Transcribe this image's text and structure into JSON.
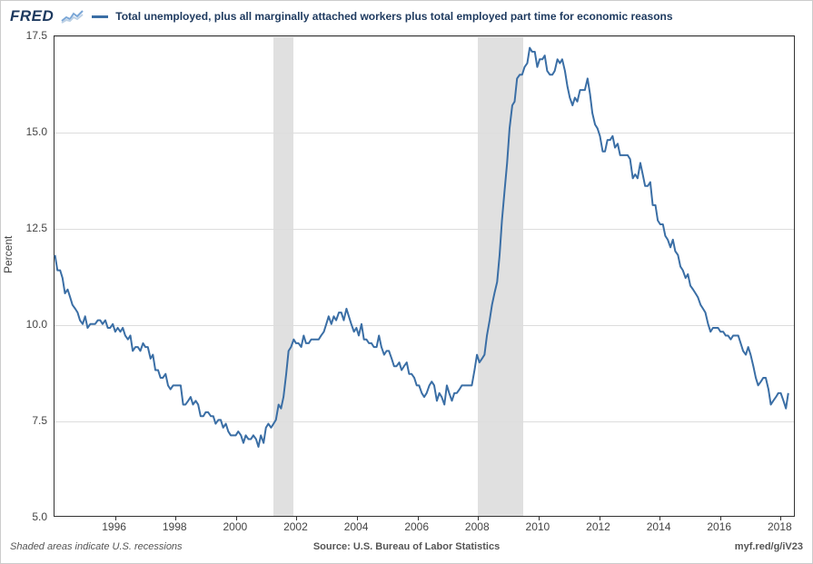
{
  "header": {
    "logo_text": "FRED",
    "legend_label": "Total unemployed, plus all marginally attached workers plus total employed part time for economic reasons"
  },
  "chart": {
    "type": "line",
    "ylabel": "Percent",
    "line_color": "#3a6ea5",
    "line_width": 2,
    "background_color": "#ffffff",
    "grid_color": "#dddddd",
    "axis_color": "#333333",
    "recession_color": "#e0e0e0",
    "label_fontsize": 12,
    "label_color": "#444444",
    "xlim": [
      1994.0,
      2018.5
    ],
    "ylim": [
      5.0,
      17.5
    ],
    "yticks": [
      5.0,
      7.5,
      10.0,
      12.5,
      15.0,
      17.5
    ],
    "ytick_labels": [
      "5.0",
      "7.5",
      "10.0",
      "12.5",
      "15.0",
      "17.5"
    ],
    "xticks": [
      1996,
      1998,
      2000,
      2002,
      2004,
      2006,
      2008,
      2010,
      2012,
      2014,
      2016,
      2018
    ],
    "xtick_labels": [
      "1996",
      "1998",
      "2000",
      "2002",
      "2004",
      "2006",
      "2008",
      "2010",
      "2012",
      "2014",
      "2016",
      "2018"
    ],
    "recessions": [
      {
        "start": 2001.25,
        "end": 2001.9
      },
      {
        "start": 2008.0,
        "end": 2009.5
      }
    ],
    "series": [
      {
        "x": 1994.0,
        "y": 11.8
      },
      {
        "x": 1994.08,
        "y": 11.4
      },
      {
        "x": 1994.17,
        "y": 11.4
      },
      {
        "x": 1994.25,
        "y": 11.2
      },
      {
        "x": 1994.33,
        "y": 10.8
      },
      {
        "x": 1994.42,
        "y": 10.9
      },
      {
        "x": 1994.5,
        "y": 10.7
      },
      {
        "x": 1994.58,
        "y": 10.5
      },
      {
        "x": 1994.67,
        "y": 10.4
      },
      {
        "x": 1994.75,
        "y": 10.3
      },
      {
        "x": 1994.83,
        "y": 10.1
      },
      {
        "x": 1994.92,
        "y": 10.0
      },
      {
        "x": 1995.0,
        "y": 10.2
      },
      {
        "x": 1995.08,
        "y": 9.9
      },
      {
        "x": 1995.17,
        "y": 10.0
      },
      {
        "x": 1995.25,
        "y": 10.0
      },
      {
        "x": 1995.33,
        "y": 10.0
      },
      {
        "x": 1995.42,
        "y": 10.1
      },
      {
        "x": 1995.5,
        "y": 10.1
      },
      {
        "x": 1995.58,
        "y": 10.0
      },
      {
        "x": 1995.67,
        "y": 10.1
      },
      {
        "x": 1995.75,
        "y": 9.9
      },
      {
        "x": 1995.83,
        "y": 9.9
      },
      {
        "x": 1995.92,
        "y": 10.0
      },
      {
        "x": 1996.0,
        "y": 9.8
      },
      {
        "x": 1996.08,
        "y": 9.9
      },
      {
        "x": 1996.17,
        "y": 9.8
      },
      {
        "x": 1996.25,
        "y": 9.9
      },
      {
        "x": 1996.33,
        "y": 9.7
      },
      {
        "x": 1996.42,
        "y": 9.6
      },
      {
        "x": 1996.5,
        "y": 9.7
      },
      {
        "x": 1996.58,
        "y": 9.3
      },
      {
        "x": 1996.67,
        "y": 9.4
      },
      {
        "x": 1996.75,
        "y": 9.4
      },
      {
        "x": 1996.83,
        "y": 9.3
      },
      {
        "x": 1996.92,
        "y": 9.5
      },
      {
        "x": 1997.0,
        "y": 9.4
      },
      {
        "x": 1997.08,
        "y": 9.4
      },
      {
        "x": 1997.17,
        "y": 9.1
      },
      {
        "x": 1997.25,
        "y": 9.2
      },
      {
        "x": 1997.33,
        "y": 8.8
      },
      {
        "x": 1997.42,
        "y": 8.8
      },
      {
        "x": 1997.5,
        "y": 8.6
      },
      {
        "x": 1997.58,
        "y": 8.6
      },
      {
        "x": 1997.67,
        "y": 8.7
      },
      {
        "x": 1997.75,
        "y": 8.4
      },
      {
        "x": 1997.83,
        "y": 8.3
      },
      {
        "x": 1997.92,
        "y": 8.4
      },
      {
        "x": 1998.0,
        "y": 8.4
      },
      {
        "x": 1998.08,
        "y": 8.4
      },
      {
        "x": 1998.17,
        "y": 8.4
      },
      {
        "x": 1998.25,
        "y": 7.9
      },
      {
        "x": 1998.33,
        "y": 7.9
      },
      {
        "x": 1998.42,
        "y": 8.0
      },
      {
        "x": 1998.5,
        "y": 8.1
      },
      {
        "x": 1998.58,
        "y": 7.9
      },
      {
        "x": 1998.67,
        "y": 8.0
      },
      {
        "x": 1998.75,
        "y": 7.9
      },
      {
        "x": 1998.83,
        "y": 7.6
      },
      {
        "x": 1998.92,
        "y": 7.6
      },
      {
        "x": 1999.0,
        "y": 7.7
      },
      {
        "x": 1999.08,
        "y": 7.7
      },
      {
        "x": 1999.17,
        "y": 7.6
      },
      {
        "x": 1999.25,
        "y": 7.6
      },
      {
        "x": 1999.33,
        "y": 7.4
      },
      {
        "x": 1999.42,
        "y": 7.5
      },
      {
        "x": 1999.5,
        "y": 7.5
      },
      {
        "x": 1999.58,
        "y": 7.3
      },
      {
        "x": 1999.67,
        "y": 7.4
      },
      {
        "x": 1999.75,
        "y": 7.2
      },
      {
        "x": 1999.83,
        "y": 7.1
      },
      {
        "x": 1999.92,
        "y": 7.1
      },
      {
        "x": 2000.0,
        "y": 7.1
      },
      {
        "x": 2000.08,
        "y": 7.2
      },
      {
        "x": 2000.17,
        "y": 7.1
      },
      {
        "x": 2000.25,
        "y": 6.9
      },
      {
        "x": 2000.33,
        "y": 7.1
      },
      {
        "x": 2000.42,
        "y": 7.0
      },
      {
        "x": 2000.5,
        "y": 7.0
      },
      {
        "x": 2000.58,
        "y": 7.1
      },
      {
        "x": 2000.67,
        "y": 7.0
      },
      {
        "x": 2000.75,
        "y": 6.8
      },
      {
        "x": 2000.83,
        "y": 7.1
      },
      {
        "x": 2000.92,
        "y": 6.9
      },
      {
        "x": 2001.0,
        "y": 7.3
      },
      {
        "x": 2001.08,
        "y": 7.4
      },
      {
        "x": 2001.17,
        "y": 7.3
      },
      {
        "x": 2001.25,
        "y": 7.4
      },
      {
        "x": 2001.33,
        "y": 7.5
      },
      {
        "x": 2001.42,
        "y": 7.9
      },
      {
        "x": 2001.5,
        "y": 7.8
      },
      {
        "x": 2001.58,
        "y": 8.1
      },
      {
        "x": 2001.67,
        "y": 8.7
      },
      {
        "x": 2001.75,
        "y": 9.3
      },
      {
        "x": 2001.83,
        "y": 9.4
      },
      {
        "x": 2001.92,
        "y": 9.6
      },
      {
        "x": 2002.0,
        "y": 9.5
      },
      {
        "x": 2002.08,
        "y": 9.5
      },
      {
        "x": 2002.17,
        "y": 9.4
      },
      {
        "x": 2002.25,
        "y": 9.7
      },
      {
        "x": 2002.33,
        "y": 9.5
      },
      {
        "x": 2002.42,
        "y": 9.5
      },
      {
        "x": 2002.5,
        "y": 9.6
      },
      {
        "x": 2002.58,
        "y": 9.6
      },
      {
        "x": 2002.67,
        "y": 9.6
      },
      {
        "x": 2002.75,
        "y": 9.6
      },
      {
        "x": 2002.83,
        "y": 9.7
      },
      {
        "x": 2002.92,
        "y": 9.8
      },
      {
        "x": 2003.0,
        "y": 10.0
      },
      {
        "x": 2003.08,
        "y": 10.2
      },
      {
        "x": 2003.17,
        "y": 10.0
      },
      {
        "x": 2003.25,
        "y": 10.2
      },
      {
        "x": 2003.33,
        "y": 10.1
      },
      {
        "x": 2003.42,
        "y": 10.3
      },
      {
        "x": 2003.5,
        "y": 10.3
      },
      {
        "x": 2003.58,
        "y": 10.1
      },
      {
        "x": 2003.67,
        "y": 10.4
      },
      {
        "x": 2003.75,
        "y": 10.2
      },
      {
        "x": 2003.83,
        "y": 10.0
      },
      {
        "x": 2003.92,
        "y": 9.8
      },
      {
        "x": 2004.0,
        "y": 9.9
      },
      {
        "x": 2004.08,
        "y": 9.7
      },
      {
        "x": 2004.17,
        "y": 10.0
      },
      {
        "x": 2004.25,
        "y": 9.6
      },
      {
        "x": 2004.33,
        "y": 9.6
      },
      {
        "x": 2004.42,
        "y": 9.5
      },
      {
        "x": 2004.5,
        "y": 9.5
      },
      {
        "x": 2004.58,
        "y": 9.4
      },
      {
        "x": 2004.67,
        "y": 9.4
      },
      {
        "x": 2004.75,
        "y": 9.7
      },
      {
        "x": 2004.83,
        "y": 9.4
      },
      {
        "x": 2004.92,
        "y": 9.2
      },
      {
        "x": 2005.0,
        "y": 9.3
      },
      {
        "x": 2005.08,
        "y": 9.3
      },
      {
        "x": 2005.17,
        "y": 9.1
      },
      {
        "x": 2005.25,
        "y": 8.9
      },
      {
        "x": 2005.33,
        "y": 8.9
      },
      {
        "x": 2005.42,
        "y": 9.0
      },
      {
        "x": 2005.5,
        "y": 8.8
      },
      {
        "x": 2005.58,
        "y": 8.9
      },
      {
        "x": 2005.67,
        "y": 9.0
      },
      {
        "x": 2005.75,
        "y": 8.7
      },
      {
        "x": 2005.83,
        "y": 8.7
      },
      {
        "x": 2005.92,
        "y": 8.6
      },
      {
        "x": 2006.0,
        "y": 8.4
      },
      {
        "x": 2006.08,
        "y": 8.4
      },
      {
        "x": 2006.17,
        "y": 8.2
      },
      {
        "x": 2006.25,
        "y": 8.1
      },
      {
        "x": 2006.33,
        "y": 8.2
      },
      {
        "x": 2006.42,
        "y": 8.4
      },
      {
        "x": 2006.5,
        "y": 8.5
      },
      {
        "x": 2006.58,
        "y": 8.4
      },
      {
        "x": 2006.67,
        "y": 8.0
      },
      {
        "x": 2006.75,
        "y": 8.2
      },
      {
        "x": 2006.83,
        "y": 8.1
      },
      {
        "x": 2006.92,
        "y": 7.9
      },
      {
        "x": 2007.0,
        "y": 8.4
      },
      {
        "x": 2007.08,
        "y": 8.2
      },
      {
        "x": 2007.17,
        "y": 8.0
      },
      {
        "x": 2007.25,
        "y": 8.2
      },
      {
        "x": 2007.33,
        "y": 8.2
      },
      {
        "x": 2007.42,
        "y": 8.3
      },
      {
        "x": 2007.5,
        "y": 8.4
      },
      {
        "x": 2007.58,
        "y": 8.4
      },
      {
        "x": 2007.67,
        "y": 8.4
      },
      {
        "x": 2007.75,
        "y": 8.4
      },
      {
        "x": 2007.83,
        "y": 8.4
      },
      {
        "x": 2007.92,
        "y": 8.8
      },
      {
        "x": 2008.0,
        "y": 9.2
      },
      {
        "x": 2008.08,
        "y": 9.0
      },
      {
        "x": 2008.17,
        "y": 9.1
      },
      {
        "x": 2008.25,
        "y": 9.2
      },
      {
        "x": 2008.33,
        "y": 9.7
      },
      {
        "x": 2008.42,
        "y": 10.1
      },
      {
        "x": 2008.5,
        "y": 10.5
      },
      {
        "x": 2008.58,
        "y": 10.8
      },
      {
        "x": 2008.67,
        "y": 11.1
      },
      {
        "x": 2008.75,
        "y": 11.8
      },
      {
        "x": 2008.83,
        "y": 12.7
      },
      {
        "x": 2008.92,
        "y": 13.5
      },
      {
        "x": 2009.0,
        "y": 14.2
      },
      {
        "x": 2009.08,
        "y": 15.1
      },
      {
        "x": 2009.17,
        "y": 15.7
      },
      {
        "x": 2009.25,
        "y": 15.8
      },
      {
        "x": 2009.33,
        "y": 16.4
      },
      {
        "x": 2009.42,
        "y": 16.5
      },
      {
        "x": 2009.5,
        "y": 16.5
      },
      {
        "x": 2009.58,
        "y": 16.7
      },
      {
        "x": 2009.67,
        "y": 16.8
      },
      {
        "x": 2009.75,
        "y": 17.2
      },
      {
        "x": 2009.83,
        "y": 17.1
      },
      {
        "x": 2009.92,
        "y": 17.1
      },
      {
        "x": 2010.0,
        "y": 16.7
      },
      {
        "x": 2010.08,
        "y": 16.9
      },
      {
        "x": 2010.17,
        "y": 16.9
      },
      {
        "x": 2010.25,
        "y": 17.0
      },
      {
        "x": 2010.33,
        "y": 16.6
      },
      {
        "x": 2010.42,
        "y": 16.5
      },
      {
        "x": 2010.5,
        "y": 16.5
      },
      {
        "x": 2010.58,
        "y": 16.6
      },
      {
        "x": 2010.67,
        "y": 16.9
      },
      {
        "x": 2010.75,
        "y": 16.8
      },
      {
        "x": 2010.83,
        "y": 16.9
      },
      {
        "x": 2010.92,
        "y": 16.6
      },
      {
        "x": 2011.0,
        "y": 16.2
      },
      {
        "x": 2011.08,
        "y": 15.9
      },
      {
        "x": 2011.17,
        "y": 15.7
      },
      {
        "x": 2011.25,
        "y": 15.9
      },
      {
        "x": 2011.33,
        "y": 15.8
      },
      {
        "x": 2011.42,
        "y": 16.1
      },
      {
        "x": 2011.5,
        "y": 16.1
      },
      {
        "x": 2011.58,
        "y": 16.1
      },
      {
        "x": 2011.67,
        "y": 16.4
      },
      {
        "x": 2011.75,
        "y": 16.0
      },
      {
        "x": 2011.83,
        "y": 15.5
      },
      {
        "x": 2011.92,
        "y": 15.2
      },
      {
        "x": 2012.0,
        "y": 15.1
      },
      {
        "x": 2012.08,
        "y": 14.9
      },
      {
        "x": 2012.17,
        "y": 14.5
      },
      {
        "x": 2012.25,
        "y": 14.5
      },
      {
        "x": 2012.33,
        "y": 14.8
      },
      {
        "x": 2012.42,
        "y": 14.8
      },
      {
        "x": 2012.5,
        "y": 14.9
      },
      {
        "x": 2012.58,
        "y": 14.6
      },
      {
        "x": 2012.67,
        "y": 14.7
      },
      {
        "x": 2012.75,
        "y": 14.4
      },
      {
        "x": 2012.83,
        "y": 14.4
      },
      {
        "x": 2012.92,
        "y": 14.4
      },
      {
        "x": 2013.0,
        "y": 14.4
      },
      {
        "x": 2013.08,
        "y": 14.3
      },
      {
        "x": 2013.17,
        "y": 13.8
      },
      {
        "x": 2013.25,
        "y": 13.9
      },
      {
        "x": 2013.33,
        "y": 13.8
      },
      {
        "x": 2013.42,
        "y": 14.2
      },
      {
        "x": 2013.5,
        "y": 13.9
      },
      {
        "x": 2013.58,
        "y": 13.6
      },
      {
        "x": 2013.67,
        "y": 13.6
      },
      {
        "x": 2013.75,
        "y": 13.7
      },
      {
        "x": 2013.83,
        "y": 13.1
      },
      {
        "x": 2013.92,
        "y": 13.1
      },
      {
        "x": 2014.0,
        "y": 12.7
      },
      {
        "x": 2014.08,
        "y": 12.6
      },
      {
        "x": 2014.17,
        "y": 12.6
      },
      {
        "x": 2014.25,
        "y": 12.3
      },
      {
        "x": 2014.33,
        "y": 12.2
      },
      {
        "x": 2014.42,
        "y": 12.0
      },
      {
        "x": 2014.5,
        "y": 12.2
      },
      {
        "x": 2014.58,
        "y": 11.9
      },
      {
        "x": 2014.67,
        "y": 11.8
      },
      {
        "x": 2014.75,
        "y": 11.5
      },
      {
        "x": 2014.83,
        "y": 11.4
      },
      {
        "x": 2014.92,
        "y": 11.2
      },
      {
        "x": 2015.0,
        "y": 11.3
      },
      {
        "x": 2015.08,
        "y": 11.0
      },
      {
        "x": 2015.17,
        "y": 10.9
      },
      {
        "x": 2015.25,
        "y": 10.8
      },
      {
        "x": 2015.33,
        "y": 10.7
      },
      {
        "x": 2015.42,
        "y": 10.5
      },
      {
        "x": 2015.5,
        "y": 10.4
      },
      {
        "x": 2015.58,
        "y": 10.3
      },
      {
        "x": 2015.67,
        "y": 10.0
      },
      {
        "x": 2015.75,
        "y": 9.8
      },
      {
        "x": 2015.83,
        "y": 9.9
      },
      {
        "x": 2015.92,
        "y": 9.9
      },
      {
        "x": 2016.0,
        "y": 9.9
      },
      {
        "x": 2016.08,
        "y": 9.8
      },
      {
        "x": 2016.17,
        "y": 9.8
      },
      {
        "x": 2016.25,
        "y": 9.7
      },
      {
        "x": 2016.33,
        "y": 9.7
      },
      {
        "x": 2016.42,
        "y": 9.6
      },
      {
        "x": 2016.5,
        "y": 9.7
      },
      {
        "x": 2016.58,
        "y": 9.7
      },
      {
        "x": 2016.67,
        "y": 9.7
      },
      {
        "x": 2016.75,
        "y": 9.5
      },
      {
        "x": 2016.83,
        "y": 9.3
      },
      {
        "x": 2016.92,
        "y": 9.2
      },
      {
        "x": 2017.0,
        "y": 9.4
      },
      {
        "x": 2017.08,
        "y": 9.2
      },
      {
        "x": 2017.17,
        "y": 8.9
      },
      {
        "x": 2017.25,
        "y": 8.6
      },
      {
        "x": 2017.33,
        "y": 8.4
      },
      {
        "x": 2017.42,
        "y": 8.5
      },
      {
        "x": 2017.5,
        "y": 8.6
      },
      {
        "x": 2017.58,
        "y": 8.6
      },
      {
        "x": 2017.67,
        "y": 8.3
      },
      {
        "x": 2017.75,
        "y": 7.9
      },
      {
        "x": 2017.83,
        "y": 8.0
      },
      {
        "x": 2017.92,
        "y": 8.1
      },
      {
        "x": 2018.0,
        "y": 8.2
      },
      {
        "x": 2018.08,
        "y": 8.2
      },
      {
        "x": 2018.17,
        "y": 8.0
      },
      {
        "x": 2018.25,
        "y": 7.8
      },
      {
        "x": 2018.33,
        "y": 8.2
      }
    ]
  },
  "footer": {
    "left": "Shaded areas indicate U.S. recessions",
    "center": "Source: U.S. Bureau of Labor Statistics",
    "right": "myf.red/g/iV23"
  }
}
